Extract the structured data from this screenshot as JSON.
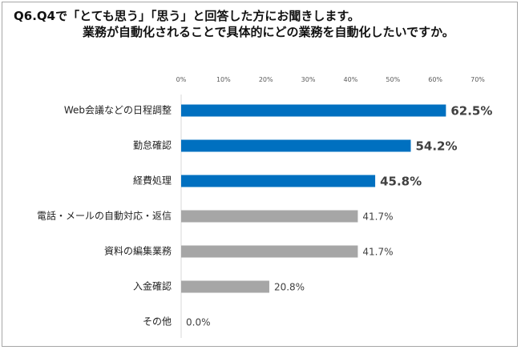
{
  "page": {
    "title_line1": "Q6.Q4で「とても思う」「思う」と回答した方にお聞きします。",
    "title_line2": "業務が自動化されることで具体的にどの業務を自動化したいですか。"
  },
  "chart_data": {
    "type": "bar",
    "orientation": "horizontal",
    "title": "Q6.Q4で「とても思う」「思う」と回答した方にお聞きします。業務が自動化されることで具体的にどの業務を自動化したいですか。",
    "xlabel": "",
    "ylabel": "",
    "xlim": [
      0,
      70
    ],
    "x_ticks": [
      "0%",
      "10%",
      "20%",
      "30%",
      "40%",
      "50%",
      "60%",
      "70%"
    ],
    "grid": false,
    "legend": "none",
    "categories": [
      "Web会議などの日程調整",
      "勤怠確認",
      "経費処理",
      "電話・メールの自動対応・返信",
      "資料の編集業務",
      "入金確認",
      "その他"
    ],
    "values": [
      62.5,
      54.2,
      45.8,
      41.7,
      41.7,
      20.8,
      0.0
    ],
    "value_labels": [
      "62.5%",
      "54.2%",
      "45.8%",
      "41.7%",
      "41.7%",
      "20.8%",
      "0.0%"
    ],
    "highlighted": [
      true,
      true,
      true,
      false,
      false,
      false,
      false
    ],
    "colors": {
      "highlight": "#0070c0",
      "normal": "#a6a6a6",
      "highlight_label": "#404040",
      "normal_label": "#404040"
    }
  }
}
